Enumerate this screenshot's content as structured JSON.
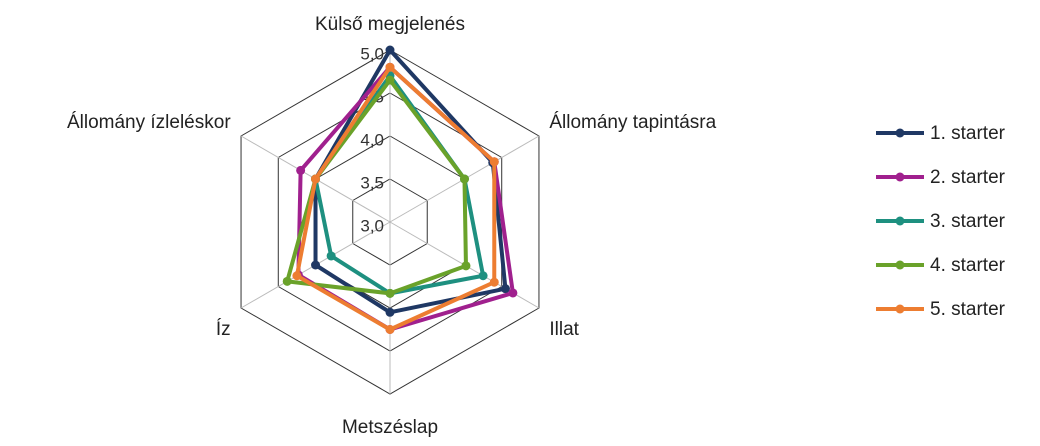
{
  "chart_data": {
    "type": "radar",
    "categories": [
      "Külső megjelenés",
      "Állomány tapintásra",
      "Illat",
      "Metszéslap",
      "Íz",
      "Állomány ízleléskor"
    ],
    "rlim": [
      3.0,
      5.0
    ],
    "rticks": [
      {
        "value": 3.0,
        "label": "3,0"
      },
      {
        "value": 3.5,
        "label": "3,5"
      },
      {
        "value": 4.0,
        "label": "4,0"
      },
      {
        "value": 4.5,
        "label": "4,5"
      },
      {
        "value": 5.0,
        "label": "5,0"
      }
    ],
    "legend": "right",
    "series": [
      {
        "name": "1. starter",
        "color": "#1f3864",
        "values": [
          5.0,
          4.38,
          4.55,
          4.05,
          4.0,
          4.0
        ]
      },
      {
        "name": "2. starter",
        "color": "#a0208e",
        "values": [
          4.8,
          4.4,
          4.65,
          4.25,
          4.23,
          4.2
        ]
      },
      {
        "name": "3. starter",
        "color": "#1e9080",
        "values": [
          4.7,
          4.0,
          4.25,
          3.83,
          3.79,
          4.0
        ]
      },
      {
        "name": "4. starter",
        "color": "#6aa22a",
        "values": [
          4.65,
          4.0,
          4.02,
          3.83,
          4.38,
          4.0
        ]
      },
      {
        "name": "5. starter",
        "color": "#ed7d31",
        "values": [
          4.8,
          4.4,
          4.4,
          4.25,
          4.25,
          4.0
        ]
      }
    ]
  }
}
